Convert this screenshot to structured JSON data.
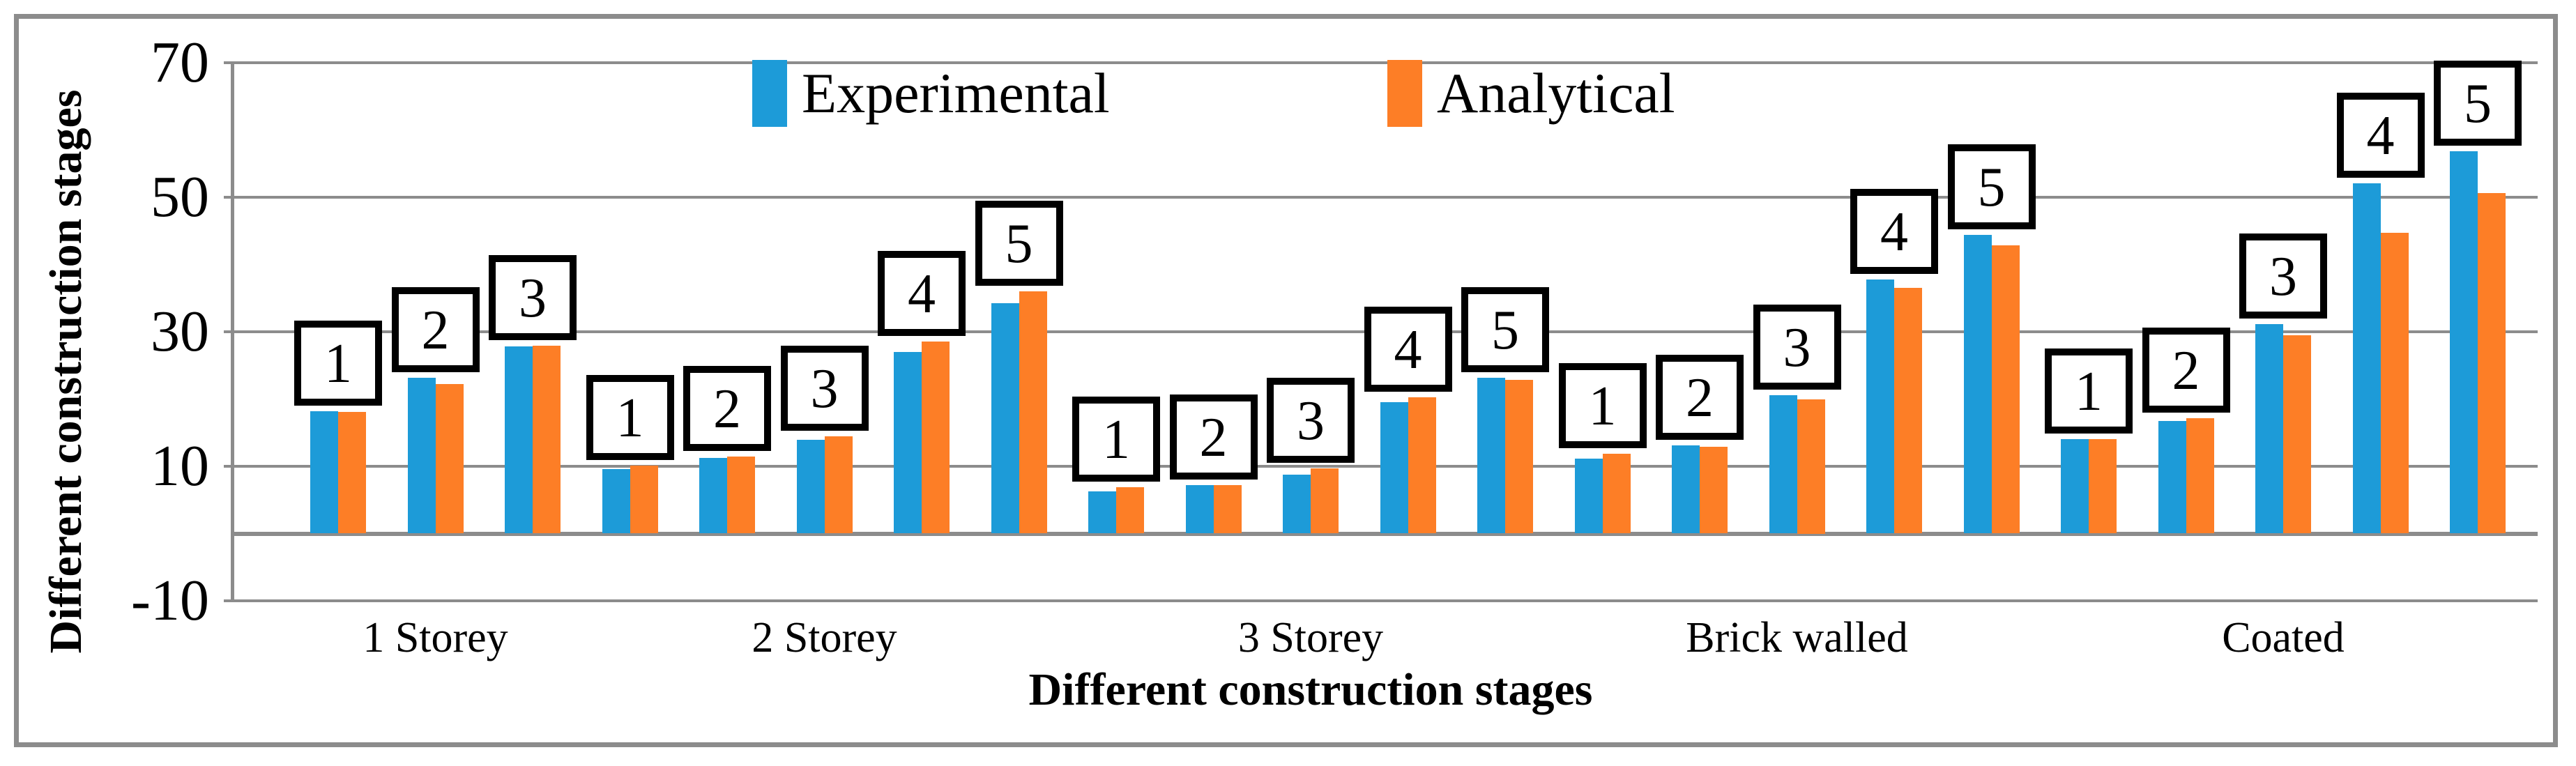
{
  "chart_data": {
    "type": "bar",
    "title": "",
    "ylabel": "Different construction stages",
    "xlabel": "Different construction stages",
    "ylim": [
      -10,
      70
    ],
    "ytick_values": [
      70,
      50,
      30,
      10,
      -10
    ],
    "ytick_labels": [
      "70",
      "50",
      "30",
      "10",
      "-10"
    ],
    "grid": "horizontal",
    "baseline_value": 0,
    "legend": {
      "position": "top",
      "entries": [
        {
          "name": "Experimental",
          "color": "#1D9BD8"
        },
        {
          "name": "Analytical",
          "color": "#FD7E26"
        }
      ]
    },
    "categories": [
      "1 Storey",
      "2 Storey",
      "3 Storey",
      "Brick walled",
      "Coated"
    ],
    "groups": [
      {
        "category": "1 Storey",
        "bars": [
          {
            "label": "1",
            "experimental": 18.2,
            "analytical": 18.1
          },
          {
            "label": "2",
            "experimental": 23.2,
            "analytical": 22.2
          },
          {
            "label": "3",
            "experimental": 27.8,
            "analytical": 27.9
          }
        ]
      },
      {
        "category": "2 Storey",
        "bars": [
          {
            "label": "1",
            "experimental": 9.6,
            "analytical": 10.1
          },
          {
            "label": "2",
            "experimental": 11.2,
            "analytical": 11.5
          },
          {
            "label": "3",
            "experimental": 13.9,
            "analytical": 14.5
          },
          {
            "label": "4",
            "experimental": 27.0,
            "analytical": 28.5
          },
          {
            "label": "5",
            "experimental": 34.3,
            "analytical": 36.0
          }
        ]
      },
      {
        "category": "3 Storey",
        "bars": [
          {
            "label": "1",
            "experimental": 6.3,
            "analytical": 6.9
          },
          {
            "label": "2",
            "experimental": 7.2,
            "analytical": 7.2
          },
          {
            "label": "3",
            "experimental": 8.8,
            "analytical": 9.7
          },
          {
            "label": "4",
            "experimental": 19.5,
            "analytical": 20.3
          },
          {
            "label": "5",
            "experimental": 23.2,
            "analytical": 22.9
          }
        ]
      },
      {
        "category": "Brick walled",
        "bars": [
          {
            "label": "1",
            "experimental": 11.1,
            "analytical": 11.9
          },
          {
            "label": "2",
            "experimental": 13.1,
            "analytical": 12.9
          },
          {
            "label": "3",
            "experimental": 20.6,
            "analytical": 20.0
          },
          {
            "label": "4",
            "experimental": 37.8,
            "analytical": 36.5
          },
          {
            "label": "5",
            "experimental": 44.4,
            "analytical": 42.9
          }
        ]
      },
      {
        "category": "Coated",
        "bars": [
          {
            "label": "1",
            "experimental": 14.0,
            "analytical": 14.0
          },
          {
            "label": "2",
            "experimental": 16.7,
            "analytical": 17.2
          },
          {
            "label": "3",
            "experimental": 31.1,
            "analytical": 29.5
          },
          {
            "label": "4",
            "experimental": 52.1,
            "analytical": 44.7
          },
          {
            "label": "5",
            "experimental": 56.8,
            "analytical": 50.6
          }
        ]
      }
    ],
    "colors": {
      "experimental": "#1D9BD8",
      "analytical": "#FD7E26",
      "gridline": "#8C8C8C",
      "border": "#8C8C8C"
    }
  }
}
